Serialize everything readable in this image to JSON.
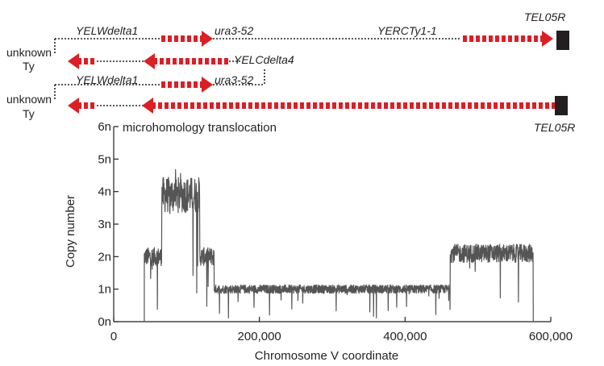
{
  "colors": {
    "arrow": "#da1f26",
    "trace": "#555555",
    "axis": "#231f20",
    "telomere": "#231f20",
    "dotted": "#231f20"
  },
  "schematic": {
    "row1_labels": {
      "yelw": "YELWdelta1",
      "ura": "ura3-52",
      "yercty": "YERCTy1-1",
      "tel": "TEL05R",
      "yelc": "YELCdelta4",
      "unknown": "unknown",
      "ty": "Ty"
    },
    "row2_labels": {
      "yelw": "YELWdelta1",
      "ura": "ura3-52",
      "tel": "TEL05R",
      "unknown": "unknown",
      "ty": "Ty"
    },
    "title": "microhomology translocation"
  },
  "chart_data": {
    "type": "line",
    "title": "",
    "xlabel": "Chromosome V coordinate",
    "ylabel": "Copy number",
    "xlim": [
      0,
      600000
    ],
    "ylim": [
      0,
      6
    ],
    "xticks": [
      0,
      200000,
      400000,
      600000
    ],
    "xtick_labels": [
      "0",
      "200,000",
      "400,000",
      "600,000"
    ],
    "yticks": [
      0,
      1,
      2,
      3,
      4,
      5,
      6
    ],
    "ytick_labels": [
      "0n",
      "1n",
      "2n",
      "3n",
      "4n",
      "5n",
      "6n"
    ],
    "grid": false,
    "series": [
      {
        "name": "",
        "segments": [
          {
            "x_start": 0,
            "x_end": 42000,
            "copy_number": 0
          },
          {
            "x_start": 42000,
            "x_end": 66000,
            "copy_number": 2.0
          },
          {
            "x_start": 66000,
            "x_end": 118000,
            "copy_number": 3.9
          },
          {
            "x_start": 118000,
            "x_end": 138000,
            "copy_number": 2.0
          },
          {
            "x_start": 138000,
            "x_end": 462000,
            "copy_number": 1.0
          },
          {
            "x_start": 462000,
            "x_end": 576000,
            "copy_number": 2.1
          },
          {
            "x_start": 576000,
            "x_end": 578000,
            "copy_number": 0
          }
        ]
      }
    ]
  }
}
